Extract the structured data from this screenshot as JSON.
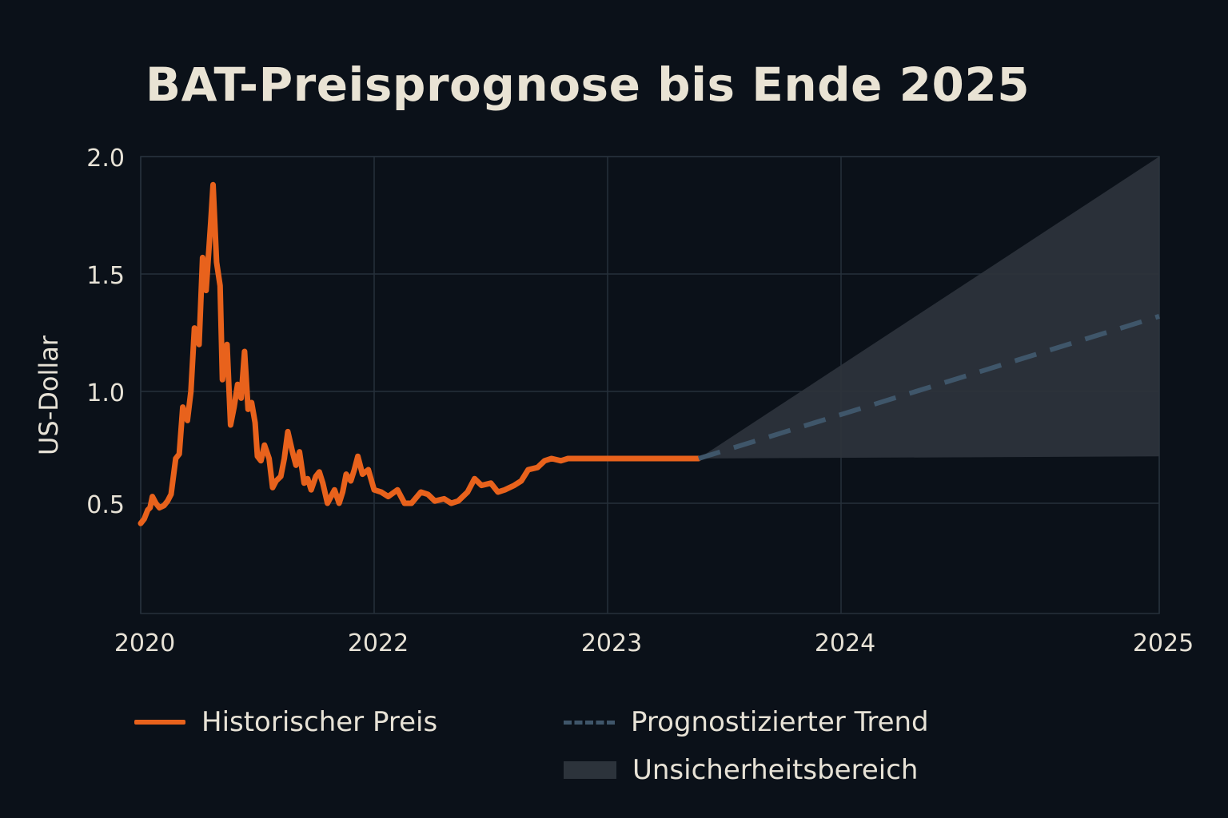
{
  "chart_data": {
    "type": "line",
    "title": "BAT-Preisprognose bis Ende 2025",
    "xlabel": "",
    "ylabel": "US-Dollar",
    "x_tick_labels": [
      "2020",
      "2022",
      "2023",
      "2024",
      "2025"
    ],
    "y_tick_labels": [
      "0.5",
      "1.0",
      "1.5",
      "2.0"
    ],
    "ylim": [
      0.0,
      2.0
    ],
    "grid": true,
    "legend_position": "bottom",
    "series": [
      {
        "name": "Historischer Preis",
        "style": "solid",
        "color": "#e8621c",
        "x": [
          2020.0,
          2020.03,
          2020.06,
          2020.08,
          2020.1,
          2020.13,
          2020.16,
          2020.2,
          2020.23,
          2020.26,
          2020.3,
          2020.33,
          2020.36,
          2020.4,
          2020.43,
          2020.46,
          2020.5,
          2020.53,
          2020.56,
          2020.6,
          2020.62,
          2020.65,
          2020.68,
          2020.7,
          2020.74,
          2020.77,
          2020.8,
          2020.83,
          2020.86,
          2020.89,
          2020.92,
          2020.95,
          2020.98,
          2021.0,
          2021.03,
          2021.06,
          2021.1,
          2021.13,
          2021.16,
          2021.2,
          2021.23,
          2021.26,
          2021.3,
          2021.33,
          2021.36,
          2021.4,
          2021.43,
          2021.46,
          2021.5,
          2021.53,
          2021.56,
          2021.6,
          2021.63,
          2021.66,
          2021.7,
          2021.73,
          2021.76,
          2021.8,
          2021.83,
          2021.86,
          2021.9,
          2021.95,
          2022.0,
          2022.03,
          2022.06,
          2022.1,
          2022.13,
          2022.16,
          2022.2,
          2022.23,
          2022.26,
          2022.3,
          2022.33,
          2022.36,
          2022.4,
          2022.43,
          2022.46,
          2022.5,
          2022.53,
          2022.56,
          2022.6,
          2022.63,
          2022.66,
          2022.7,
          2022.73,
          2022.76,
          2022.8,
          2022.83,
          2022.86,
          2022.9,
          2022.93,
          2022.96,
          2023.0,
          2023.03,
          2023.06,
          2023.1,
          2023.13,
          2023.16,
          2023.2,
          2023.23,
          2023.26,
          2023.3,
          2023.33,
          2023.36,
          2023.39
        ],
        "y": [
          0.41,
          0.43,
          0.47,
          0.48,
          0.53,
          0.5,
          0.48,
          0.49,
          0.51,
          0.54,
          0.7,
          0.72,
          0.93,
          0.87,
          1.0,
          1.27,
          1.2,
          1.57,
          1.43,
          1.72,
          1.88,
          1.55,
          1.45,
          1.05,
          1.2,
          0.85,
          0.93,
          1.03,
          0.97,
          1.17,
          0.92,
          0.95,
          0.86,
          0.71,
          0.69,
          0.76,
          0.7,
          0.57,
          0.6,
          0.62,
          0.7,
          0.82,
          0.73,
          0.67,
          0.73,
          0.59,
          0.61,
          0.56,
          0.62,
          0.64,
          0.59,
          0.5,
          0.53,
          0.56,
          0.5,
          0.55,
          0.63,
          0.6,
          0.65,
          0.71,
          0.63,
          0.65,
          0.56,
          0.55,
          0.53,
          0.56,
          0.5,
          0.5,
          0.55,
          0.54,
          0.51,
          0.52,
          0.5,
          0.51,
          0.55,
          0.61,
          0.58,
          0.59,
          0.55,
          0.56,
          0.58,
          0.6,
          0.65,
          0.66,
          0.69,
          0.7,
          0.69,
          0.7,
          0.7,
          0.7,
          0.7,
          0.7,
          0.7,
          0.7,
          0.7,
          0.7,
          0.7,
          0.7,
          0.7,
          0.7,
          0.7,
          0.7,
          0.7,
          0.7,
          0.7
        ]
      },
      {
        "name": "Prognostizierter Trend",
        "style": "dashed",
        "color": "#3f566a",
        "x": [
          2023.39,
          2025.0
        ],
        "y": [
          0.7,
          1.32
        ]
      }
    ],
    "band": {
      "name": "Unsicherheitsbereich",
      "color": "#2c333b",
      "x": [
        2023.39,
        2025.0
      ],
      "lower": [
        0.7,
        0.71
      ],
      "upper": [
        0.7,
        2.0
      ]
    }
  }
}
